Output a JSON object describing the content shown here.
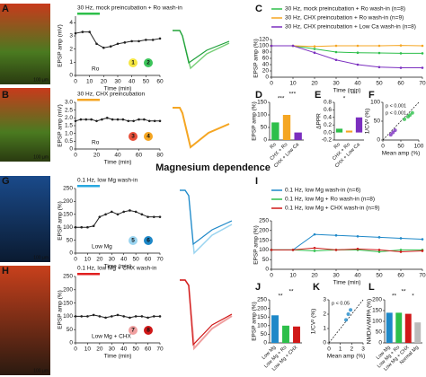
{
  "heading": "Magnesium dependence",
  "chart_data": [
    {
      "panel": "A",
      "type": "line",
      "title": "30 Hz, mock preincubation + Ro wash-in",
      "ylabel": "EPSP amp (mV)",
      "xlabel": "Time (min)",
      "x": [
        0,
        5,
        10,
        15,
        20,
        25,
        30,
        35,
        40,
        45,
        50,
        55,
        60
      ],
      "series": [
        {
          "color": "#222222",
          "values": [
            3.2,
            3.3,
            3.3,
            2.4,
            2.1,
            2.2,
            2.4,
            2.5,
            2.6,
            2.6,
            2.7,
            2.7,
            2.8
          ]
        }
      ],
      "xlim": [
        0,
        60
      ],
      "xticks": [
        0,
        10,
        20,
        30,
        40,
        50,
        60
      ],
      "ylim": [
        0,
        4.5
      ],
      "yticks": [
        0,
        1,
        2,
        3,
        4
      ],
      "wash_color": "#2dbf4a",
      "drug": "Ro",
      "badges": [
        "1",
        "2"
      ],
      "badge_colors": [
        "#f5e642",
        "#3cc45a"
      ],
      "scale_label": "100 µm"
    },
    {
      "panel": "B",
      "type": "line",
      "title": "30 Hz, CHX preincubation",
      "ylabel": "EPSP amp (mV)",
      "xlabel": "Time (min)",
      "x": [
        0,
        5,
        10,
        15,
        20,
        25,
        30,
        35,
        40,
        45,
        50,
        55,
        60,
        65,
        70,
        75,
        80
      ],
      "series": [
        {
          "color": "#222222",
          "values": [
            1.8,
            1.9,
            1.9,
            1.9,
            1.8,
            1.9,
            2.0,
            1.9,
            1.9,
            1.9,
            1.8,
            1.8,
            1.9,
            1.9,
            1.8,
            1.8,
            1.8
          ]
        }
      ],
      "xlim": [
        0,
        80
      ],
      "xticks": [
        0,
        20,
        40,
        60,
        80
      ],
      "ylim": [
        0,
        3
      ],
      "yticks": [
        0,
        0.5,
        {
          "value": 1,
          "label": "1.0"
        },
        1.5,
        {
          "value": 2,
          "label": "2.0"
        },
        2.5,
        {
          "value": 3,
          "label": "3.0"
        }
      ],
      "wash_color": "#f5a623",
      "drug": "Ro",
      "badges": [
        "3",
        "4"
      ],
      "badge_colors": [
        "#e8503a",
        "#f5a623"
      ],
      "scale_label": "100 µm"
    },
    {
      "panel": "C",
      "type": "line",
      "ylabel": "EPSP amp (%)",
      "xlabel": "Time (min)",
      "x": [
        0,
        10,
        20,
        30,
        40,
        50,
        60,
        70
      ],
      "series": [
        {
          "name": "30 Hz, mock preincubation + Ro wash-in (n=8)",
          "color": "#2dbf4a",
          "values": [
            100,
            100,
            90,
            80,
            78,
            77,
            76,
            76
          ]
        },
        {
          "name": "30 Hz, CHX preincubation + Ro wash-in (n=9)",
          "color": "#f5a623",
          "values": [
            100,
            100,
            98,
            100,
            100,
            100,
            101,
            100
          ]
        },
        {
          "name": "30 Hz, CHX preincubation + Low Ca wash-in (n=8)",
          "color": "#7b2fbf",
          "values": [
            100,
            100,
            78,
            55,
            40,
            32,
            30,
            30
          ]
        }
      ],
      "xlim": [
        0,
        70
      ],
      "xticks": [
        0,
        10,
        20,
        30,
        40,
        50,
        60,
        70
      ],
      "ylim": [
        0,
        120
      ],
      "yticks": [
        0,
        20,
        40,
        60,
        80,
        100,
        120
      ]
    },
    {
      "panel": "D",
      "type": "bar",
      "ylabel": "EPSP amp (%)",
      "categories": [
        "Ro",
        "CHX + Ro",
        "CHX + Low Ca"
      ],
      "values": [
        70,
        100,
        30
      ],
      "colors": [
        "#2dbf4a",
        "#f5a623",
        "#7b2fbf"
      ],
      "significance": [
        "***",
        "***"
      ],
      "ylim": [
        0,
        150
      ],
      "yticks": [
        0,
        50,
        100,
        150
      ]
    },
    {
      "panel": "E",
      "type": "bar",
      "ylabel": "ΔPPR",
      "categories": [
        "Ro",
        "CHX + Ro",
        "CHX + Low Ca"
      ],
      "values": [
        0.1,
        0.05,
        0.4
      ],
      "colors": [
        "#2dbf4a",
        "#f5a623",
        "#7b2fbf"
      ],
      "significance": [
        "*",
        "***"
      ],
      "ylim": [
        -0.2,
        0.8
      ],
      "yticks": [
        -0.2,
        {
          "value": 0,
          "label": "0.0"
        },
        0.2,
        0.4,
        0.6,
        0.8
      ]
    },
    {
      "panel": "F",
      "type": "scatter",
      "ylabel": "1/CV² (%)",
      "xlabel": "Mean amp (%)",
      "series": [
        {
          "color": "#2dbf4a",
          "x": [
            60,
            70,
            75,
            82
          ],
          "values": [
            55,
            62,
            66,
            72
          ]
        },
        {
          "color": "#7b2fbf",
          "x": [
            22,
            28,
            34
          ],
          "values": [
            14,
            20,
            26
          ]
        }
      ],
      "annotations": [
        {
          "text": "p < 0.001",
          "color": "#2dbf4a"
        },
        {
          "text": "p < 0.001",
          "color": "#7b2fbf"
        }
      ],
      "xlim": [
        0,
        100
      ],
      "xticks": [
        0,
        50,
        100
      ],
      "ylim": [
        0,
        100
      ],
      "yticks": [
        0,
        50,
        100
      ]
    },
    {
      "panel": "G",
      "type": "line",
      "title": "0.1 Hz, low Mg wash-in",
      "ylabel": "EPSP amp (%)",
      "xlabel": "Time (min)",
      "x": [
        0,
        5,
        10,
        15,
        20,
        25,
        30,
        35,
        40,
        45,
        50,
        55,
        60,
        65,
        70
      ],
      "series": [
        {
          "color": "#222222",
          "values": [
            100,
            100,
            100,
            105,
            140,
            150,
            160,
            150,
            160,
            165,
            160,
            150,
            140,
            140,
            140
          ]
        }
      ],
      "xlim": [
        0,
        70
      ],
      "xticks": [
        0,
        10,
        20,
        30,
        40,
        50,
        60,
        70
      ],
      "ylim": [
        0,
        250
      ],
      "yticks": [
        0,
        50,
        100,
        150,
        200,
        250
      ],
      "wash_color": "#29a8e0",
      "drug": "Low Mg",
      "badges": [
        "5",
        "6"
      ],
      "badge_colors": [
        "#9ad4f0",
        "#1e88c8"
      ],
      "scale_label": "100 µm"
    },
    {
      "panel": "H",
      "type": "line",
      "title": "0.1 Hz, low Mg + CHX wash-in",
      "ylabel": "EPSP amp (%)",
      "xlabel": "Time (min)",
      "x": [
        0,
        5,
        10,
        15,
        20,
        25,
        30,
        35,
        40,
        45,
        50,
        55,
        60,
        65,
        70
      ],
      "series": [
        {
          "color": "#222222",
          "values": [
            100,
            100,
            100,
            105,
            100,
            95,
            100,
            105,
            100,
            95,
            100,
            100,
            95,
            100,
            100
          ]
        }
      ],
      "xlim": [
        0,
        70
      ],
      "xticks": [
        0,
        10,
        20,
        30,
        40,
        50,
        60,
        70
      ],
      "ylim": [
        0,
        250
      ],
      "yticks": [
        0,
        50,
        100,
        150,
        200,
        250
      ],
      "wash_color": "#e02020",
      "drug": "Low Mg + CHX",
      "badges": [
        "7",
        "8"
      ],
      "badge_colors": [
        "#f0a0a0",
        "#d01818"
      ],
      "scale_label": "100 µm"
    },
    {
      "panel": "I",
      "type": "line",
      "ylabel": "EPSP amp (%)",
      "xlabel": "Time (min)",
      "x": [
        0,
        10,
        20,
        30,
        40,
        50,
        60,
        70
      ],
      "series": [
        {
          "name": "0.1 Hz, low Mg wash-in (n=6)",
          "color": "#1e88c8",
          "values": [
            100,
            100,
            180,
            175,
            170,
            165,
            160,
            155
          ]
        },
        {
          "name": "0.1 Hz, low Mg + Ro wash-in (n=8)",
          "color": "#2dbf4a",
          "values": [
            100,
            100,
            95,
            100,
            100,
            90,
            100,
            100
          ]
        },
        {
          "name": "0.1 Hz, low Mg + CHX wash-in (n=9)",
          "color": "#d01818",
          "values": [
            100,
            100,
            110,
            100,
            105,
            100,
            90,
            95
          ]
        }
      ],
      "xlim": [
        0,
        70
      ],
      "xticks": [
        0,
        10,
        20,
        30,
        40,
        50,
        60,
        70
      ],
      "ylim": [
        0,
        250
      ],
      "yticks": [
        0,
        50,
        100,
        150,
        200,
        250
      ]
    },
    {
      "panel": "J",
      "type": "bar",
      "ylabel": "EPSP amp (%)",
      "categories": [
        "Low Mg",
        "Low Mg + Ro",
        "Low Mg + CHX"
      ],
      "values": [
        160,
        100,
        95
      ],
      "colors": [
        "#1e88c8",
        "#2dbf4a",
        "#d01818"
      ],
      "significance": [
        "**",
        "**"
      ],
      "ylim": [
        0,
        250
      ],
      "yticks": [
        0,
        50,
        100,
        150,
        200,
        250
      ]
    },
    {
      "panel": "K",
      "type": "scatter",
      "ylabel": "1/CV² (%)",
      "xlabel": "Mean amp (%)",
      "series": [
        {
          "color": "#1e88c8",
          "x": [
            1.5,
            1.7,
            1.9
          ],
          "values": [
            1.6,
            2.0,
            2.3
          ]
        }
      ],
      "annotations": [
        {
          "text": "p < 0.05",
          "color": "#111111"
        }
      ],
      "xlim": [
        0,
        3
      ],
      "xticks": [
        0,
        1,
        2,
        3
      ],
      "ylim": [
        0,
        3
      ],
      "yticks": [
        0,
        1,
        2,
        3
      ]
    },
    {
      "panel": "L",
      "type": "bar",
      "ylabel": "NMDA/AMPA (%)",
      "categories": [
        "Low Mg",
        "Low Mg + Ro",
        "Low Mg + CHX",
        "Normal Mg"
      ],
      "values": [
        140,
        140,
        135,
        95
      ],
      "colors": [
        "#1e88c8",
        "#2dbf4a",
        "#d01818",
        "#bbbbbb"
      ],
      "significance": [
        "**",
        "**",
        "*"
      ],
      "ylim": [
        0,
        200
      ],
      "yticks": [
        0,
        50,
        100,
        150,
        200
      ]
    }
  ]
}
